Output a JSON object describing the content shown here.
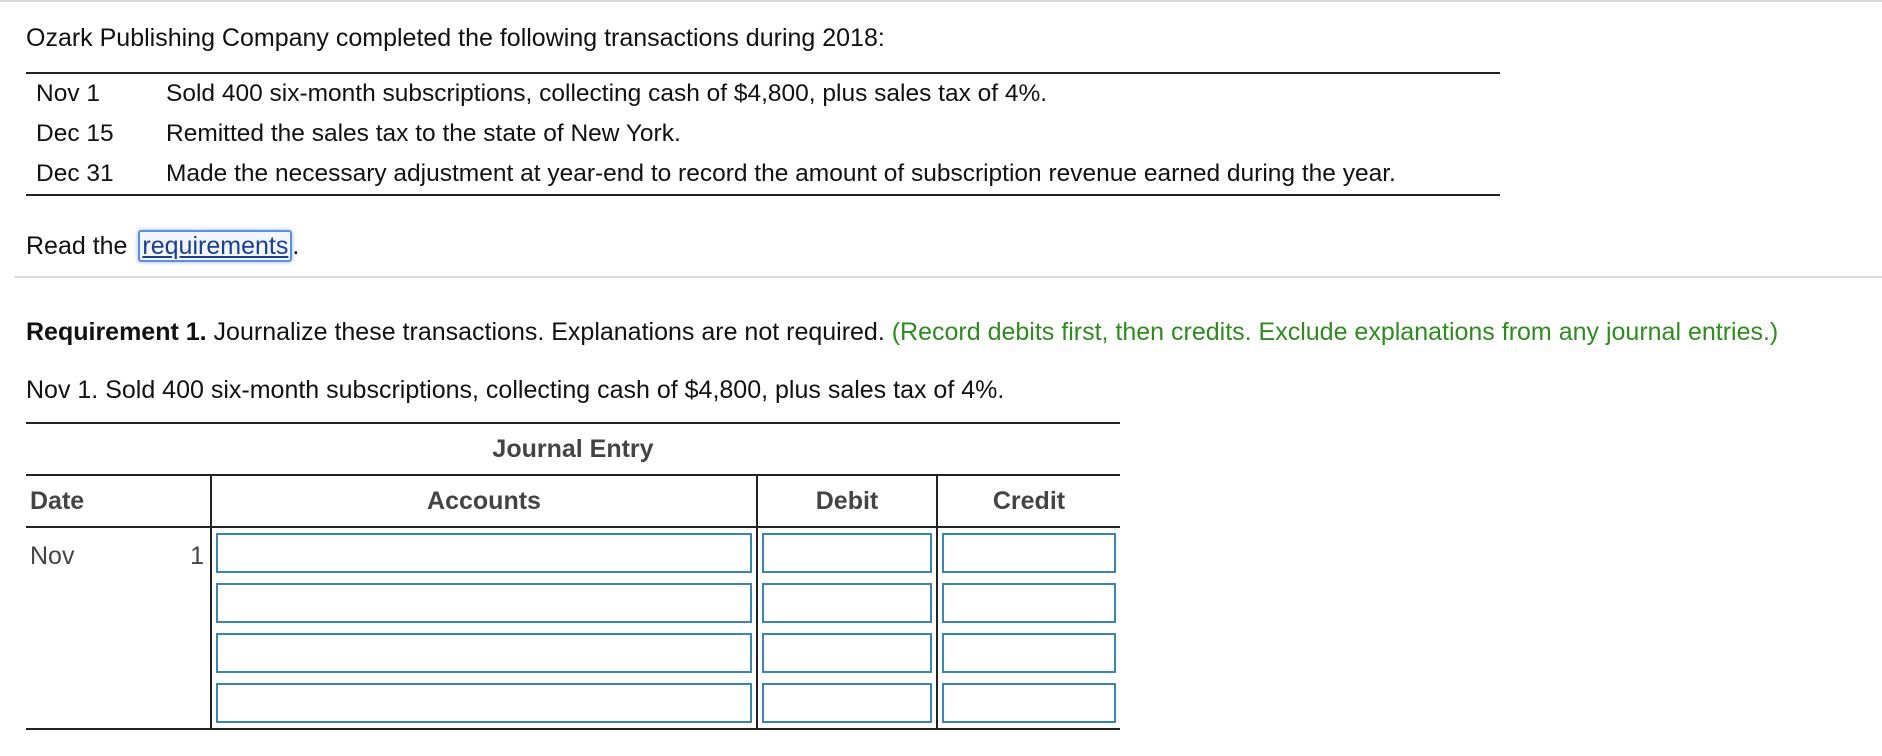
{
  "intro": "Ozark Publishing Company completed the following transactions during 2018:",
  "transactions": [
    {
      "date": "Nov 1",
      "description": "Sold 400 six-month subscriptions, collecting cash of $4,800, plus sales tax of 4%."
    },
    {
      "date": "Dec 15",
      "description": "Remitted the sales tax to the state of New York."
    },
    {
      "date": "Dec 31",
      "description": "Made the necessary adjustment at year-end to record the amount of subscription revenue earned during the year."
    }
  ],
  "read": {
    "prefix": "Read the ",
    "link": "requirements",
    "suffix": "."
  },
  "requirement": {
    "label": "Requirement 1.",
    "text": " Journalize these transactions. Explanations are not required. ",
    "hint": "(Record debits first, then credits. Exclude explanations from any journal entries.)",
    "hint_color": "#2e8b1e"
  },
  "step_prompt": "Nov 1. Sold 400 six-month subscriptions, collecting cash of $4,800, plus sales tax of 4%.",
  "journal": {
    "title": "Journal Entry",
    "headers": {
      "date": "Date",
      "accounts": "Accounts",
      "debit": "Debit",
      "credit": "Credit"
    },
    "month": "Nov",
    "day": "1",
    "rows": [
      {
        "account": "",
        "debit": "",
        "credit": ""
      },
      {
        "account": "",
        "debit": "",
        "credit": ""
      },
      {
        "account": "",
        "debit": "",
        "credit": ""
      },
      {
        "account": "",
        "debit": "",
        "credit": ""
      }
    ]
  }
}
